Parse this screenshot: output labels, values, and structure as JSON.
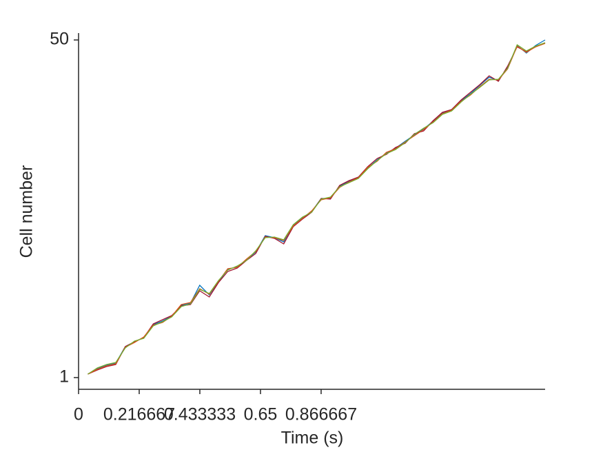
{
  "chart_data": {
    "type": "line",
    "x_label": "Time (s)",
    "y_label": "Cell number",
    "x": [
      0.033,
      0.067,
      0.1,
      0.133,
      0.167,
      0.2,
      0.233,
      0.267,
      0.3,
      0.333,
      0.367,
      0.4,
      0.433,
      0.467,
      0.5,
      0.533,
      0.567,
      0.6,
      0.633,
      0.667,
      0.7,
      0.733,
      0.767,
      0.8,
      0.833,
      0.867,
      0.9,
      0.933,
      0.967,
      1,
      1.033,
      1.067,
      1.1,
      1.133,
      1.167,
      1.2,
      1.233,
      1.267,
      1.3,
      1.333,
      1.367,
      1.4,
      1.433,
      1.467,
      1.5,
      1.533,
      1.567,
      1.6,
      1.633,
      1.667
    ],
    "series": [
      {
        "color": "#0072BD",
        "values": [
          1.5,
          2.3,
          2.8,
          3.1,
          5.5,
          6.2,
          6.8,
          8.7,
          9.2,
          9.9,
          11.5,
          11.8,
          14.4,
          13.0,
          14.9,
          16.7,
          17.1,
          18.1,
          19.2,
          21.6,
          21.3,
          20.7,
          23.1,
          24.2,
          25.1,
          27.0,
          27.0,
          28.8,
          29.5,
          30.1,
          31.4,
          32.6,
          33.6,
          34.3,
          35.3,
          36.2,
          37.1,
          38.2,
          39.4,
          39.9,
          41.2,
          42.2,
          43.4,
          44.6,
          44.1,
          46.0,
          49.2,
          48.1,
          49.2,
          50.0
        ]
      },
      {
        "color": "#A2142F",
        "values": [
          1.5,
          2.1,
          2.6,
          2.9,
          5.5,
          6.2,
          6.8,
          8.8,
          9.4,
          10.0,
          11.4,
          11.6,
          13.6,
          12.7,
          14.8,
          16.4,
          16.9,
          18.0,
          19.0,
          21.5,
          21.2,
          20.4,
          22.9,
          24.0,
          25.0,
          27.0,
          26.9,
          28.9,
          29.6,
          30.1,
          31.6,
          32.8,
          33.4,
          34.4,
          35.0,
          36.4,
          36.8,
          38.3,
          39.5,
          39.9,
          41.3,
          42.4,
          43.5,
          44.8,
          44.0,
          46.2,
          49.0,
          48.3,
          49.0,
          49.6
        ]
      },
      {
        "color": "#D95319",
        "values": [
          1.5,
          2.2,
          2.7,
          3.0,
          5.4,
          6.1,
          6.9,
          8.6,
          9.0,
          9.9,
          11.6,
          11.9,
          13.9,
          13.1,
          15.0,
          16.8,
          17.0,
          18.2,
          19.3,
          21.4,
          21.3,
          20.9,
          23.0,
          24.1,
          25.2,
          26.8,
          27.1,
          28.6,
          29.4,
          30.0,
          31.5,
          32.4,
          33.7,
          34.2,
          35.2,
          36.1,
          37.0,
          38.1,
          39.3,
          39.8,
          41.1,
          42.0,
          43.2,
          44.3,
          44.2,
          45.8,
          49.1,
          48.2,
          49.0,
          49.5
        ]
      },
      {
        "color": "#77AC30",
        "values": [
          1.5,
          2.4,
          2.9,
          3.2,
          5.3,
          6.3,
          6.7,
          8.5,
          9.1,
          9.8,
          11.3,
          11.7,
          13.8,
          13.2,
          15.1,
          16.6,
          17.2,
          18.0,
          19.4,
          21.3,
          21.4,
          21.0,
          23.2,
          24.3,
          25.0,
          26.9,
          27.2,
          28.7,
          29.3,
          29.9,
          31.3,
          32.5,
          33.5,
          34.1,
          35.1,
          36.3,
          37.2,
          38.0,
          39.2,
          39.7,
          41.0,
          42.1,
          43.1,
          44.2,
          44.3,
          45.9,
          49.3,
          48.4,
          49.1,
          49.6
        ]
      }
    ],
    "xlim": [
      0,
      1.667
    ],
    "xticks": [
      0,
      0.216667,
      0.433333,
      0.65,
      0.866667
    ],
    "ylim": [
      -0.7,
      51.0
    ],
    "yticks": [
      1,
      50
    ],
    "grid": false
  }
}
